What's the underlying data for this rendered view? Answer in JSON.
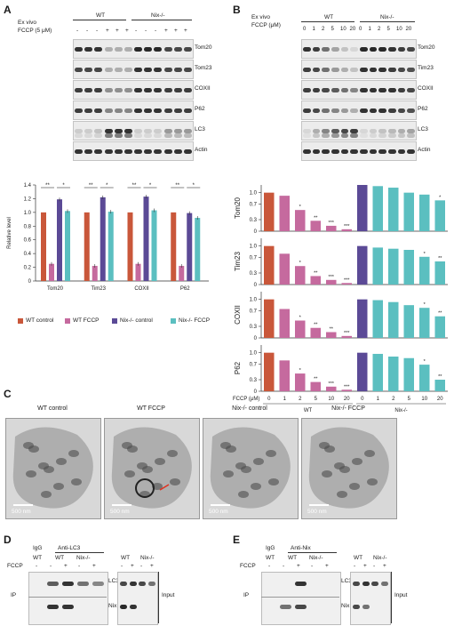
{
  "panels": {
    "A": "A",
    "B": "B",
    "C": "C",
    "D": "D",
    "E": "E"
  },
  "panelA": {
    "row1": "Ex vivo",
    "row2": "FCCP (5 μM)",
    "group_wt": "WT",
    "group_nix": "Nix-/-",
    "fccp_signs": [
      "-",
      "-",
      "-",
      "+",
      "+",
      "+",
      "-",
      "-",
      "-",
      "+",
      "+",
      "+"
    ],
    "blot_labels": [
      "Tom20",
      "Tom23",
      "COXII",
      "P62",
      "LC3",
      "Actin"
    ]
  },
  "panelB": {
    "row1": "Ex vivo",
    "row2": "FCCP (μM)",
    "group_wt": "WT",
    "group_nix": "Nix-/-",
    "doses": [
      "0",
      "1",
      "2",
      "5",
      "10",
      "20",
      "0",
      "1",
      "2",
      "5",
      "10",
      "20"
    ],
    "blot_labels": [
      "Tom20",
      "Tim23",
      "COXII",
      "P62",
      "LC3",
      "Actin"
    ],
    "fccp_axis_label": "FCCP (μM)",
    "group_axis_wt": "WT",
    "group_axis_nix": "Nix-/-"
  },
  "colors": {
    "wt_control": "#c9573a",
    "wt_fccp": "#c56a9e",
    "nix_control": "#5b4a96",
    "nix_fccp": "#5bbfc0"
  },
  "chart_data": [
    {
      "type": "bar",
      "panel": "A",
      "categories": [
        "Tom20",
        "Tim23",
        "COXII",
        "P62"
      ],
      "ylabel": "Relative level",
      "ylim": [
        0,
        1.4
      ],
      "yticks": [
        "0",
        "0.2",
        "0.4",
        "0.6",
        "0.8",
        "1.0",
        "1.2",
        "1.4"
      ],
      "series": [
        {
          "name": "WT control",
          "values": [
            1.0,
            1.0,
            1.0,
            1.0
          ]
        },
        {
          "name": "WT FCCP",
          "values": [
            0.25,
            0.22,
            0.25,
            0.22
          ]
        },
        {
          "name": "Nix-/- control",
          "values": [
            1.19,
            1.22,
            1.23,
            0.99
          ]
        },
        {
          "name": "Nix-/- FCCP",
          "values": [
            1.02,
            1.01,
            1.03,
            0.92
          ]
        }
      ],
      "significance": [
        "**",
        "*",
        "**",
        "*",
        "**",
        "*",
        "**",
        "*"
      ]
    },
    {
      "type": "bar",
      "panel": "B",
      "categories": [
        "0",
        "1",
        "2",
        "5",
        "10",
        "20",
        "0",
        "1",
        "2",
        "5",
        "10",
        "20"
      ],
      "yticks": [
        "0",
        "0.3",
        "0.7",
        "1.0"
      ],
      "ylim": [
        0,
        1.2
      ],
      "groups": [
        "WT",
        "WT",
        "WT",
        "WT",
        "WT",
        "WT",
        "Nix-/-",
        "Nix-/-",
        "Nix-/-",
        "Nix-/-",
        "Nix-/-",
        "Nix-/-"
      ],
      "series": [
        {
          "name": "Tom20",
          "values": [
            1.0,
            0.92,
            0.55,
            0.27,
            0.14,
            0.05,
            1.2,
            1.17,
            1.13,
            1.0,
            0.95,
            0.8
          ],
          "stars": [
            "",
            "",
            "*",
            "**",
            "***",
            "***",
            "",
            "",
            "",
            "",
            "",
            "*"
          ]
        },
        {
          "name": "Tim23",
          "values": [
            1.0,
            0.8,
            0.48,
            0.22,
            0.12,
            0.04,
            1.0,
            0.96,
            0.93,
            0.9,
            0.72,
            0.6
          ],
          "stars": [
            "",
            "",
            "*",
            "**",
            "***",
            "***",
            "",
            "",
            "",
            "",
            "*",
            "**"
          ]
        },
        {
          "name": "COXII",
          "values": [
            1.0,
            0.75,
            0.45,
            0.26,
            0.15,
            0.05,
            1.0,
            0.98,
            0.93,
            0.85,
            0.78,
            0.56
          ],
          "stars": [
            "",
            "",
            "*",
            "**",
            "**",
            "***",
            "",
            "",
            "",
            "",
            "*",
            "**"
          ]
        },
        {
          "name": "P62",
          "values": [
            1.0,
            0.8,
            0.46,
            0.24,
            0.12,
            0.04,
            1.0,
            0.97,
            0.9,
            0.86,
            0.69,
            0.3
          ],
          "stars": [
            "",
            "",
            "*",
            "**",
            "***",
            "***",
            "",
            "",
            "",
            "",
            "*",
            "**"
          ]
        }
      ]
    }
  ],
  "legendA": [
    "WT control",
    "WT FCCP",
    "Nix-/- control",
    "Nix-/- FCCP"
  ],
  "panelC": {
    "titles": [
      "WT control",
      "WT FCCP",
      "Nix-/- control",
      "Nix-/- FCCP"
    ],
    "scale": "500 nm"
  },
  "panelD": {
    "igg": "IgG",
    "anti": "Anti-LC3",
    "wt": "WT",
    "nix": "Nix-/-",
    "fccp": "FCCP",
    "signs_ip": [
      "-",
      "-",
      "+",
      "-",
      "+"
    ],
    "signs_input": [
      "-",
      "+",
      "-",
      "+"
    ],
    "ip": "IP",
    "lc3": "LC3",
    "nix_label": "Nix",
    "input": "Input"
  },
  "panelE": {
    "igg": "IgG",
    "anti": "Anti-Nix",
    "wt": "WT",
    "nix": "Nix-/-",
    "fccp": "FCCP",
    "signs_ip": [
      "-",
      "-",
      "+",
      "-",
      "+"
    ],
    "signs_input": [
      "-",
      "+",
      "-",
      "+"
    ],
    "ip": "IP",
    "lc3": "LC3",
    "nix_label": "Nix",
    "input": "Input"
  }
}
